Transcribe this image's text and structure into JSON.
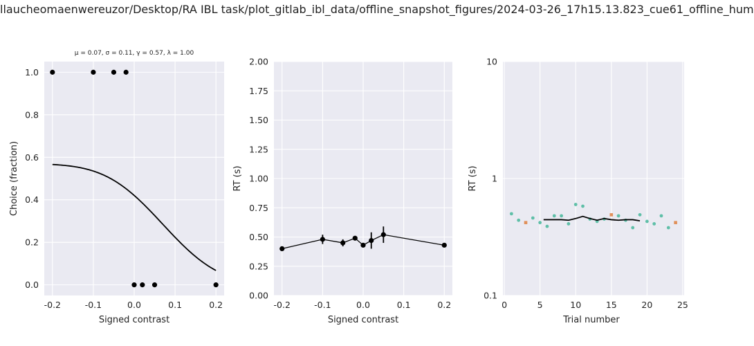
{
  "figure": {
    "title": "llaucheomaenwereuzor/Desktop/RA IBL task/plot_gitlab_ibl_data/offline_snapshot_figures/2024-03-26_17h15.13.823_cue61_offline_hum"
  },
  "chart_data": [
    {
      "type": "scatter",
      "title": "μ = 0.07, σ = 0.11, γ = 0.57, λ = 1.00",
      "xlabel": "Signed contrast",
      "ylabel": "Choice (fraction)",
      "xlim": [
        -0.22,
        0.22
      ],
      "ylim": [
        -0.05,
        1.05
      ],
      "xticks": [
        "-0.2",
        "-0.1",
        "0.0",
        "0.1",
        "0.2"
      ],
      "xtick_values": [
        -0.2,
        -0.1,
        0.0,
        0.1,
        0.2
      ],
      "yticks": [
        "0.0",
        "0.2",
        "0.4",
        "0.6",
        "0.8",
        "1.0"
      ],
      "ytick_values": [
        0.0,
        0.2,
        0.4,
        0.6,
        0.8,
        1.0
      ],
      "grid": true,
      "points": {
        "x": [
          -0.2,
          -0.1,
          -0.05,
          -0.02,
          -0.0,
          0.02,
          0.05,
          0.2
        ],
        "y": [
          1.0,
          1.0,
          1.0,
          1.0,
          0.0,
          0.0,
          0.0,
          0.0
        ]
      },
      "fit": {
        "mu": 0.07,
        "sigma": 0.11,
        "gamma": 0.57,
        "lambda": 1.0,
        "x_range": [
          -0.2,
          0.2
        ]
      }
    },
    {
      "type": "line",
      "title": "",
      "xlabel": "Signed contrast",
      "ylabel": "RT (s)",
      "xlim": [
        -0.22,
        0.22
      ],
      "ylim": [
        0.0,
        2.0
      ],
      "xticks": [
        "-0.2",
        "-0.1",
        "0.0",
        "0.1",
        "0.2"
      ],
      "xtick_values": [
        -0.2,
        -0.1,
        0.0,
        0.1,
        0.2
      ],
      "yticks": [
        "0.00",
        "0.25",
        "0.50",
        "0.75",
        "1.00",
        "1.25",
        "1.50",
        "1.75",
        "2.00"
      ],
      "ytick_values": [
        0.0,
        0.25,
        0.5,
        0.75,
        1.0,
        1.25,
        1.5,
        1.75,
        2.0
      ],
      "grid": true,
      "points": {
        "x": [
          -0.2,
          -0.1,
          -0.05,
          -0.02,
          0.0,
          0.02,
          0.05,
          0.2
        ],
        "y": [
          0.4,
          0.48,
          0.45,
          0.49,
          0.43,
          0.47,
          0.52,
          0.43
        ],
        "err": [
          0.0,
          0.04,
          0.03,
          0.0,
          0.0,
          0.07,
          0.07,
          0.0
        ]
      }
    },
    {
      "type": "scatter",
      "title": "",
      "xlabel": "Trial number",
      "ylabel": "RT (s)",
      "xlim": [
        -0.2,
        25.2
      ],
      "ylim": [
        0.1,
        10
      ],
      "log_y": true,
      "xticks": [
        "0",
        "5",
        "10",
        "15",
        "20",
        "25"
      ],
      "xtick_values": [
        0,
        5,
        10,
        15,
        20,
        25
      ],
      "yticks": [
        "0.1",
        "1",
        "10"
      ],
      "ytick_values": [
        0.1,
        1,
        10
      ],
      "grid": true,
      "colors": {
        "correct": "#5fbfa8",
        "error": "#e0905a",
        "smooth": "#000000"
      },
      "trials": {
        "x": [
          1,
          2,
          3,
          4,
          5,
          6,
          7,
          8,
          9,
          10,
          11,
          12,
          13,
          14,
          15,
          16,
          17,
          18,
          19,
          20,
          21,
          22,
          23,
          24
        ],
        "rt": [
          0.5,
          0.44,
          0.42,
          0.46,
          0.42,
          0.39,
          0.48,
          0.48,
          0.41,
          0.6,
          0.58,
          0.45,
          0.43,
          0.45,
          0.49,
          0.48,
          0.44,
          0.38,
          0.49,
          0.43,
          0.41,
          0.48,
          0.38,
          0.42
        ],
        "correct": [
          true,
          true,
          false,
          true,
          true,
          true,
          true,
          true,
          true,
          true,
          true,
          true,
          true,
          true,
          false,
          true,
          true,
          true,
          true,
          true,
          true,
          true,
          true,
          false
        ]
      },
      "smooth": {
        "x": [
          5.5,
          7,
          8,
          9,
          10,
          11,
          12,
          13,
          14,
          15,
          16,
          17,
          18,
          19
        ],
        "y": [
          0.445,
          0.445,
          0.445,
          0.44,
          0.455,
          0.475,
          0.455,
          0.44,
          0.455,
          0.445,
          0.44,
          0.445,
          0.445,
          0.435
        ]
      }
    }
  ]
}
